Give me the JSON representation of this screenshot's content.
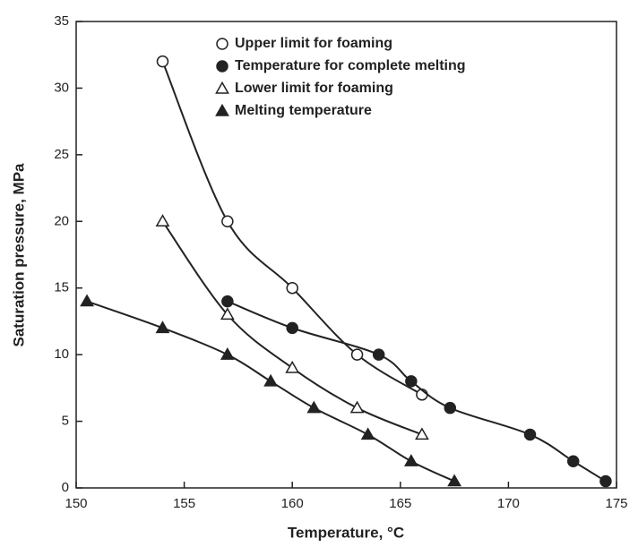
{
  "chart_data": {
    "type": "scatter",
    "x_label": "Temperature, °C",
    "y_label": "Saturation pressure, MPa",
    "xlim": [
      150,
      175
    ],
    "xticks": [
      150,
      155,
      160,
      165,
      170,
      175
    ],
    "ylim": [
      0,
      35
    ],
    "yticks": [
      0,
      5,
      10,
      15,
      20,
      25,
      30,
      35
    ],
    "legend": "upper center",
    "series": [
      {
        "name": "Upper limit for foaming",
        "color": "#222222",
        "marker": "circle",
        "filled": false,
        "x": [
          154,
          157,
          160,
          163,
          166
        ],
        "values": [
          32,
          20,
          15,
          10,
          7
        ]
      },
      {
        "name": "Temperature for complete melting",
        "color": "#222222",
        "marker": "circle",
        "filled": true,
        "x": [
          157,
          160,
          164,
          165.5,
          167.3,
          171,
          173,
          174.5
        ],
        "values": [
          14,
          12,
          10,
          8,
          6,
          4,
          2,
          0.5
        ]
      },
      {
        "name": "Lower limit for foaming",
        "color": "#222222",
        "marker": "triangle",
        "filled": false,
        "x": [
          154,
          157,
          160,
          163,
          166
        ],
        "values": [
          20,
          13,
          9,
          6,
          4
        ]
      },
      {
        "name": "Melting temperature",
        "color": "#222222",
        "marker": "triangle",
        "filled": true,
        "x": [
          150.5,
          154,
          157,
          159,
          161,
          163.5,
          165.5,
          167.5
        ],
        "values": [
          14,
          12,
          10,
          8,
          6,
          4,
          2,
          0.5
        ]
      }
    ]
  }
}
